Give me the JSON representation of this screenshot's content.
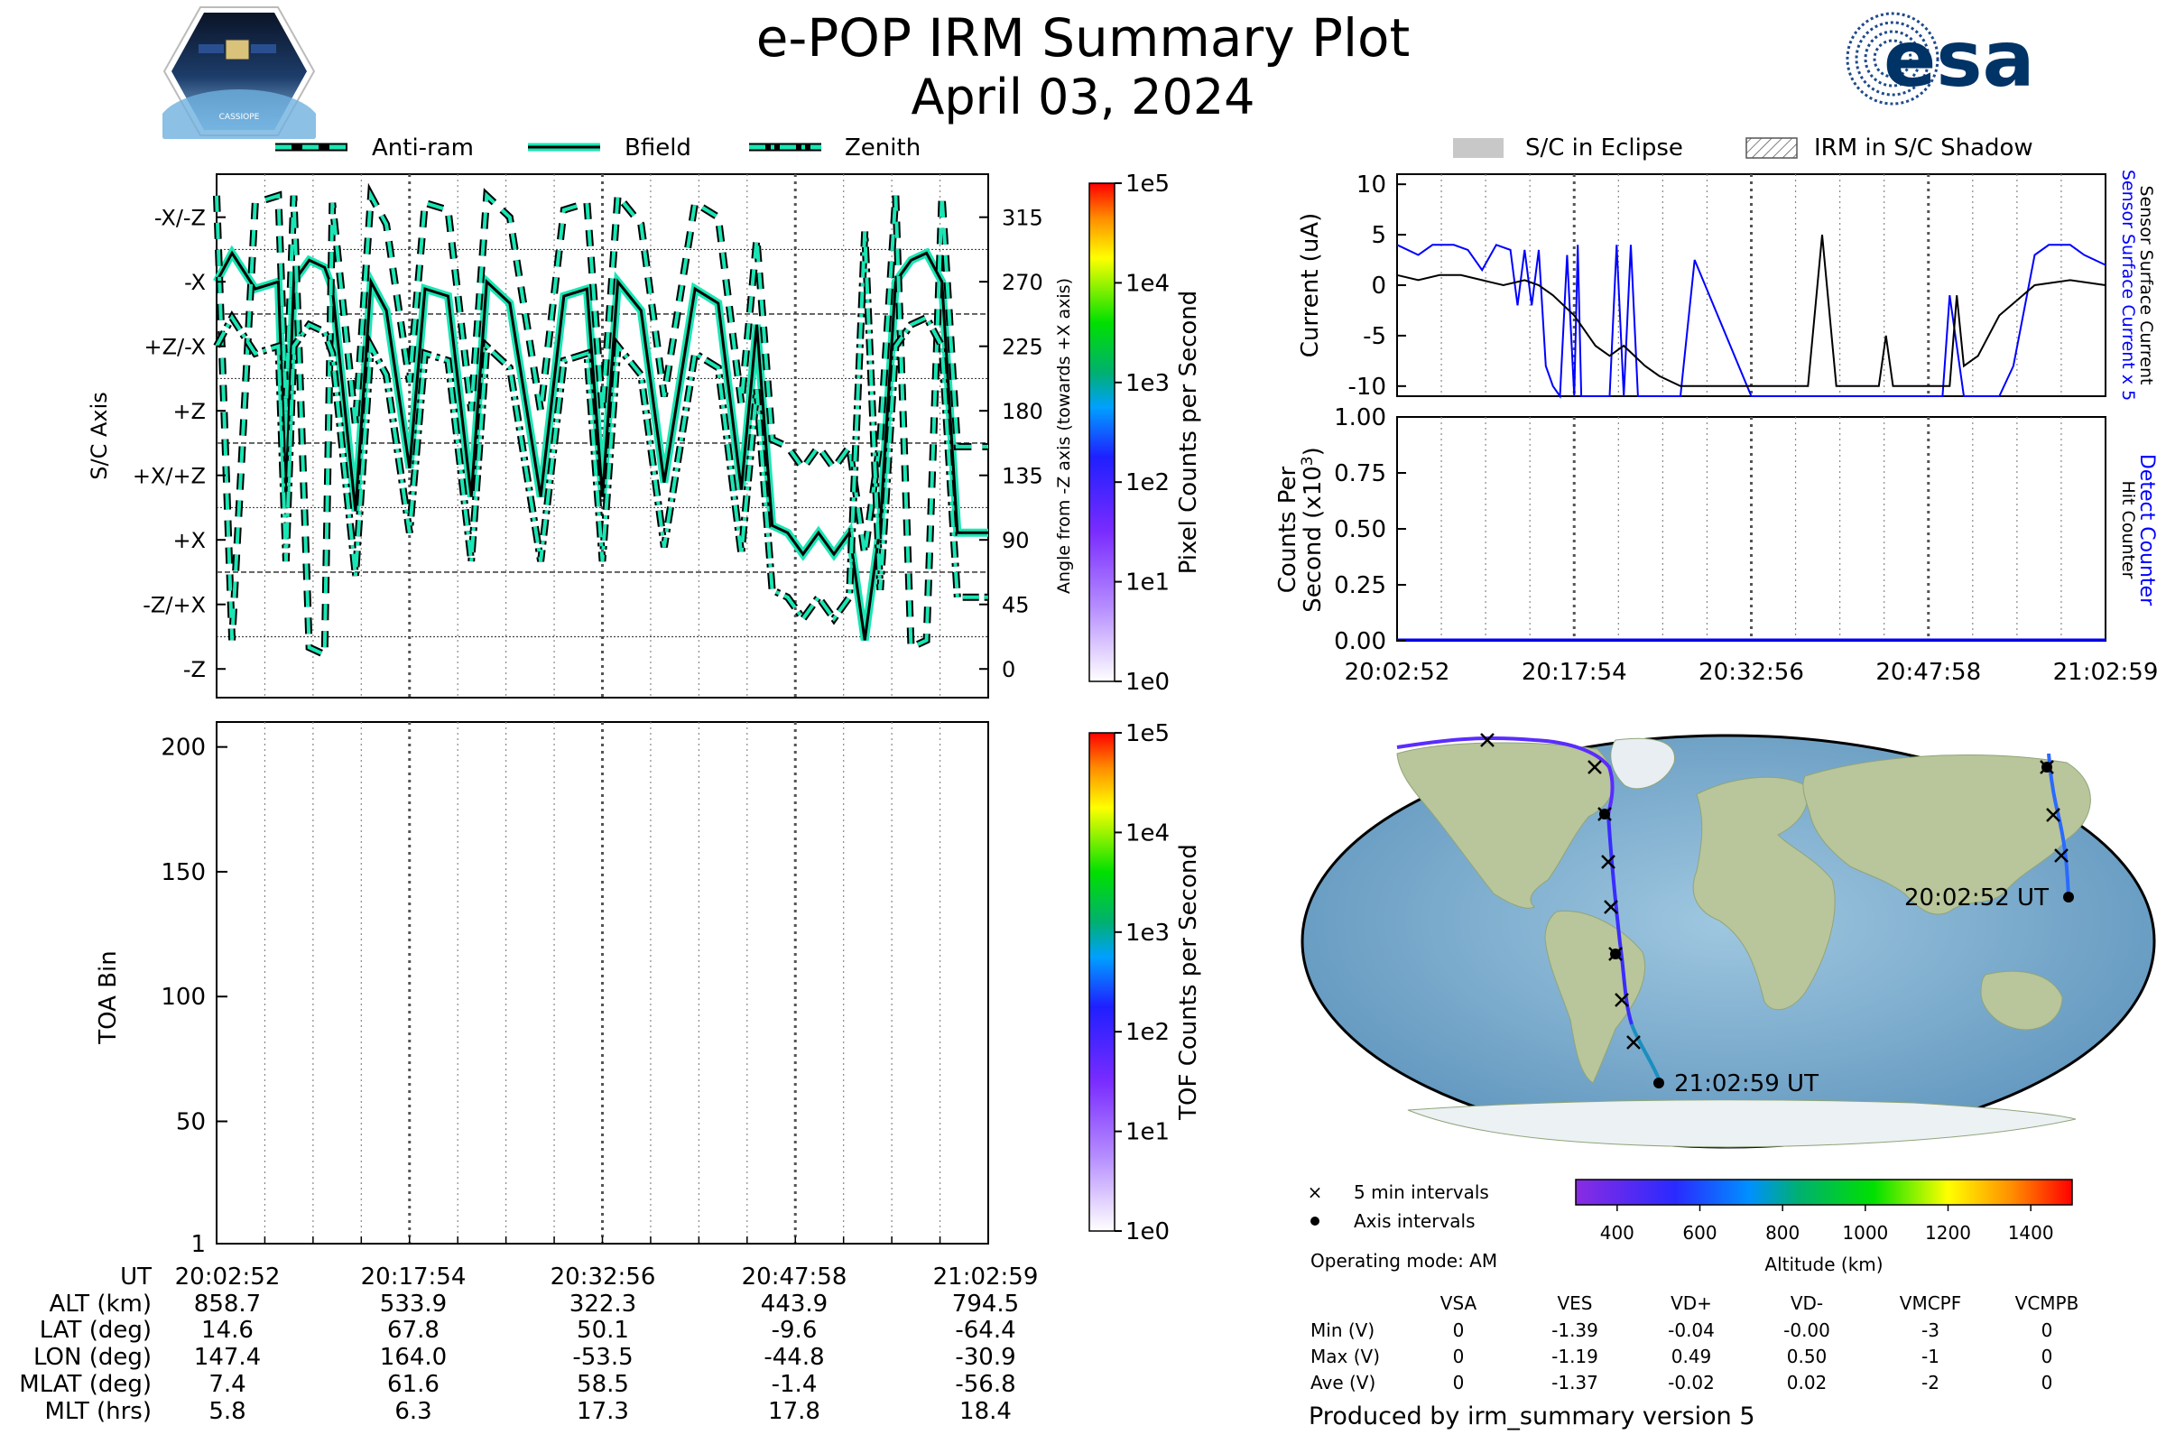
{
  "header": {
    "title": "e-POP IRM Summary Plot",
    "date": "April 03, 2024",
    "left_logo_text": "CASSIOPE",
    "right_logo_text": "esa"
  },
  "colors": {
    "accent_line": "#19e6b4",
    "sensor_current": "#0000ff",
    "detect_counter": "#0000ff",
    "eclipse": "#c8c8c8",
    "grid_dotted": "#555555"
  },
  "chart_data": [
    {
      "type": "line",
      "panel": "sc-axis-angle",
      "ylabel": "S/C Axis",
      "ylabel_right": "Angle from -Z axis (towards +X axis)",
      "axis_tick_labels_left": [
        "-X/-Z",
        "-X",
        "+Z/-X",
        "+Z",
        "+X/+Z",
        "+X",
        "-Z/+X",
        "-Z"
      ],
      "axis_tick_labels_right": [
        "315",
        "270",
        "225",
        "180",
        "135",
        "90",
        "45",
        "0"
      ],
      "ylim": [
        -20,
        345
      ],
      "legend": [
        "Anti-ram",
        "Bfield",
        "Zenith"
      ],
      "legend_position": "top",
      "colorbar": {
        "label": "Pixel Counts per Second",
        "ticks": [
          "1e0",
          "1e1",
          "1e2",
          "1e3",
          "1e4",
          "1e5"
        ]
      },
      "series": [
        {
          "name": "Bfield",
          "x_frac": [
            0.0,
            0.02,
            0.05,
            0.08,
            0.09,
            0.1,
            0.12,
            0.14,
            0.15,
            0.18,
            0.2,
            0.22,
            0.25,
            0.27,
            0.3,
            0.33,
            0.35,
            0.38,
            0.42,
            0.45,
            0.48,
            0.5,
            0.52,
            0.55,
            0.58,
            0.62,
            0.65,
            0.68,
            0.7,
            0.72,
            0.74,
            0.76,
            0.78,
            0.8,
            0.82,
            0.84,
            0.86,
            0.88,
            0.9,
            0.92,
            0.94,
            0.96,
            1.0
          ],
          "values": [
            270,
            290,
            265,
            270,
            120,
            270,
            285,
            280,
            265,
            110,
            270,
            250,
            140,
            265,
            260,
            120,
            270,
            255,
            120,
            260,
            265,
            120,
            270,
            250,
            130,
            265,
            255,
            125,
            240,
            100,
            95,
            80,
            95,
            80,
            95,
            20,
            100,
            270,
            285,
            290,
            270,
            95,
            95
          ]
        }
      ]
    },
    {
      "type": "heatmap",
      "panel": "toa",
      "ylabel": "TOA Bin",
      "ylim": [
        1,
        210
      ],
      "yticks": [
        "1",
        "50",
        "100",
        "150",
        "200"
      ],
      "colorbar": {
        "label": "TOF Counts per Second",
        "ticks": [
          "1e0",
          "1e1",
          "1e2",
          "1e3",
          "1e4",
          "1e5"
        ]
      },
      "values": []
    },
    {
      "type": "line",
      "panel": "current",
      "ylabel": "Current (uA)",
      "ylabel_right": [
        "Sensor Surface Current x 5",
        "Sensor Surface Current"
      ],
      "ylim": [
        -11,
        11
      ],
      "yticks": [
        "10",
        "5",
        "0",
        "-5",
        "-10"
      ],
      "legend": [
        "S/C in Eclipse",
        "IRM in S/C Shadow"
      ],
      "legend_position": "top",
      "series": [
        {
          "name": "Sensor Surface Current x 5",
          "color": "#0000ff",
          "x_frac": [
            0.0,
            0.03,
            0.05,
            0.08,
            0.1,
            0.12,
            0.14,
            0.16,
            0.17,
            0.18,
            0.19,
            0.2,
            0.21,
            0.22,
            0.23,
            0.24,
            0.25,
            0.255,
            0.26,
            0.27,
            0.29,
            0.3,
            0.31,
            0.32,
            0.33,
            0.34,
            0.35,
            0.36,
            0.4,
            0.42,
            0.5,
            0.52,
            0.54,
            0.56,
            0.58,
            0.6,
            0.62,
            0.7,
            0.77,
            0.78,
            0.8,
            0.85,
            0.87,
            0.9,
            0.92,
            0.95,
            0.97,
            1.0
          ],
          "values": [
            4,
            3,
            4,
            4,
            3.5,
            1.5,
            4,
            3.5,
            -2,
            3.5,
            -2,
            3.5,
            -8,
            -10,
            -12,
            3,
            -12,
            4,
            -12,
            -12,
            -12,
            -12,
            4,
            -12,
            4,
            -12,
            -12,
            -12,
            -12,
            2.5,
            -12,
            -12,
            -12,
            -12,
            -12,
            -12,
            -12,
            -12,
            -12,
            -1,
            -12,
            -12,
            -8,
            3,
            4,
            4,
            3,
            2
          ]
        },
        {
          "name": "Sensor Surface Current",
          "color": "#000000",
          "x_frac": [
            0.0,
            0.03,
            0.06,
            0.09,
            0.12,
            0.15,
            0.18,
            0.2,
            0.22,
            0.25,
            0.28,
            0.3,
            0.32,
            0.35,
            0.37,
            0.4,
            0.42,
            0.45,
            0.5,
            0.55,
            0.58,
            0.6,
            0.62,
            0.65,
            0.68,
            0.69,
            0.7,
            0.72,
            0.75,
            0.78,
            0.79,
            0.8,
            0.82,
            0.85,
            0.9,
            0.95,
            1.0
          ],
          "values": [
            1,
            0.5,
            1,
            1,
            0.5,
            0,
            0.5,
            0,
            -1,
            -3,
            -6,
            -7,
            -6,
            -8,
            -9,
            -10,
            -10,
            -10,
            -10,
            -10,
            -10,
            5,
            -10,
            -10,
            -10,
            -5,
            -10,
            -10,
            -10,
            -10,
            -1,
            -8,
            -7,
            -3,
            0,
            0.5,
            0
          ]
        }
      ]
    },
    {
      "type": "line",
      "panel": "counts",
      "ylabel": [
        "Counts Per",
        "Second (x10",
        "3",
        ")"
      ],
      "ylabel_right": [
        "Detect Counter",
        "Hit Counter"
      ],
      "ylim": [
        0,
        1
      ],
      "yticks": [
        "1.00",
        "0.75",
        "0.50",
        "0.25",
        "0.00"
      ],
      "series": [
        {
          "name": "Detect Counter",
          "color": "#0000ff",
          "x_frac": [
            0,
            1
          ],
          "values": [
            0,
            0
          ]
        }
      ]
    }
  ],
  "time_axis": [
    "20:02:52",
    "20:17:54",
    "20:32:56",
    "20:47:58",
    "21:02:59"
  ],
  "ephemeris": {
    "headers": [
      "UT",
      "ALT (km)",
      "LAT (deg)",
      "LON (deg)",
      "MLAT (deg)",
      "MLT (hrs)"
    ],
    "columns": [
      [
        "20:02:52",
        "858.7",
        "14.6",
        "147.4",
        "7.4",
        "5.8"
      ],
      [
        "20:17:54",
        "533.9",
        "67.8",
        "164.0",
        "61.6",
        "6.3"
      ],
      [
        "20:32:56",
        "322.3",
        "50.1",
        "-53.5",
        "58.5",
        "17.3"
      ],
      [
        "20:47:58",
        "443.9",
        "-9.6",
        "-44.8",
        "-1.4",
        "17.8"
      ],
      [
        "21:02:59",
        "794.5",
        "-64.4",
        "-30.9",
        "-56.8",
        "18.4"
      ]
    ]
  },
  "map": {
    "start_label": "20:02:52 UT",
    "end_label": "21:02:59 UT",
    "legend_cross": "5 min intervals",
    "legend_dot": "Axis intervals",
    "operating_mode": "Operating mode: AM",
    "colorbar_label": "Altitude (km)",
    "colorbar_ticks": [
      "400",
      "600",
      "800",
      "1000",
      "1200",
      "1400"
    ]
  },
  "voltages": {
    "headers": [
      "VSA",
      "VES",
      "VD+",
      "VD-",
      "VMCPF",
      "VCMPB"
    ],
    "rows": [
      {
        "label": "Min (V)",
        "values": [
          "0",
          "-1.39",
          "-0.04",
          "-0.00",
          "-3",
          "0"
        ]
      },
      {
        "label": "Max (V)",
        "values": [
          "0",
          "-1.19",
          "0.49",
          "0.50",
          "-1",
          "0"
        ]
      },
      {
        "label": "Ave (V)",
        "values": [
          "0",
          "-1.37",
          "-0.02",
          "0.02",
          "-2",
          "0"
        ]
      }
    ]
  },
  "footer": "Produced by irm_summary version 5"
}
